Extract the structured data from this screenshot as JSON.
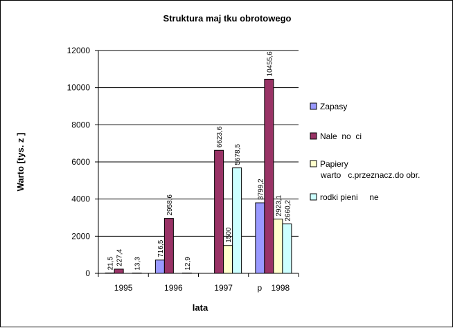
{
  "chart_data": {
    "type": "bar",
    "title": "Struktura maj  tku obrotowego",
    "xlabel": "lata",
    "ylabel": "Warto     [tys. z  ]",
    "categories": [
      "1995",
      "1996",
      "1997",
      "p    1998"
    ],
    "ylim": [
      0,
      12000
    ],
    "yticks": [
      "0",
      "2000",
      "4000",
      "6000",
      "8000",
      "10000",
      "12000"
    ],
    "grid": true,
    "legend_position": "right",
    "series": [
      {
        "name": "Zapasy",
        "color": "#9999ff",
        "values": [
          21.5,
          716.5,
          null,
          3799.2
        ],
        "labels": [
          "21,5",
          "716,5",
          "",
          "3799,2"
        ]
      },
      {
        "name": "Nale no  ci",
        "color": "#993366",
        "values": [
          227.4,
          2958.6,
          6623.6,
          10455.6
        ],
        "labels": [
          "227,4",
          "2958,6",
          "6623,6",
          "10455,6"
        ]
      },
      {
        "name": "Papiery warto  c.przeznacz.do obr.",
        "color": "#ffffcc",
        "values": [
          null,
          null,
          1500,
          2923.1
        ],
        "labels": [
          "",
          "",
          "1500",
          "2923,1"
        ]
      },
      {
        "name": "rodki pieni     ne",
        "color": "#ccffff",
        "values": [
          13.3,
          12.9,
          5678.5,
          2660.2
        ],
        "labels": [
          "13,3",
          "12,9",
          "5678,5",
          "2660,2"
        ]
      }
    ]
  },
  "legend": {
    "items": [
      {
        "lines": [
          "Zapasy"
        ],
        "color": "#9999ff"
      },
      {
        "lines": [
          "Nale  no  ci"
        ],
        "color": "#993366"
      },
      {
        "lines": [
          "Papiery",
          "warto   c.przeznacz.do obr."
        ],
        "color": "#ffffcc"
      },
      {
        "lines": [
          "rodki pieni     ne"
        ],
        "color": "#ccffff"
      }
    ]
  }
}
